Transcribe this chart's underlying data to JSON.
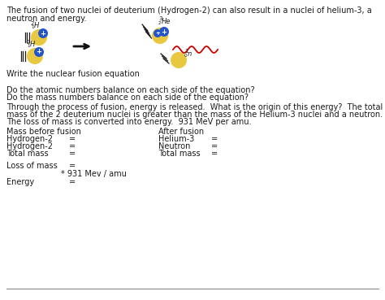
{
  "bg_color": "#ffffff",
  "text_color": "#1a1a1a",
  "line1": "The fusion of two nuclei of deuterium (Hydrogen-2) can also result in a nuclei of helium-3, a",
  "line2": "neutron and energy.",
  "write_eq": "Write the nuclear fusion equation",
  "blank": "",
  "q1": "Do the atomic numbers balance on each side of the equation?",
  "q2": "Do the mass numbers balance on each side of the equation?",
  "para1": "Through the process of fusion, energy is released.  What is the origin of this energy?  The total",
  "para2": "mass of the 2 deuterium nuclei is greater than the mass of the Helium-3 nuclei and a neutron.",
  "para3": "The loss of mass is converted into energy.  931 MeV per amu.",
  "mass_before": "Mass before fusion",
  "after_fusion": "After fusion",
  "h2_1_left": "Hydrogen-2",
  "h2_1_eq": "=",
  "h2_2_left": "Hydrogen-2",
  "h2_2_eq": "=",
  "he3_left": "Helium-3",
  "he3_eq": "=",
  "neutron_left": "Neutron",
  "neutron_eq": "=",
  "total_before_left": "Total mass",
  "total_before_eq": "=",
  "total_after_left": "Total mass",
  "total_after_eq": "=",
  "loss_left": "Loss of mass",
  "loss_eq": "=",
  "energy_mult": "* 931 Mev / amu",
  "energy_left": "Energy",
  "energy_eq": "=",
  "font_size": 7.0,
  "yellow": "#e8c840",
  "blue": "#2255cc",
  "red_wave": "#cc0000",
  "arrow_color": "#111111"
}
